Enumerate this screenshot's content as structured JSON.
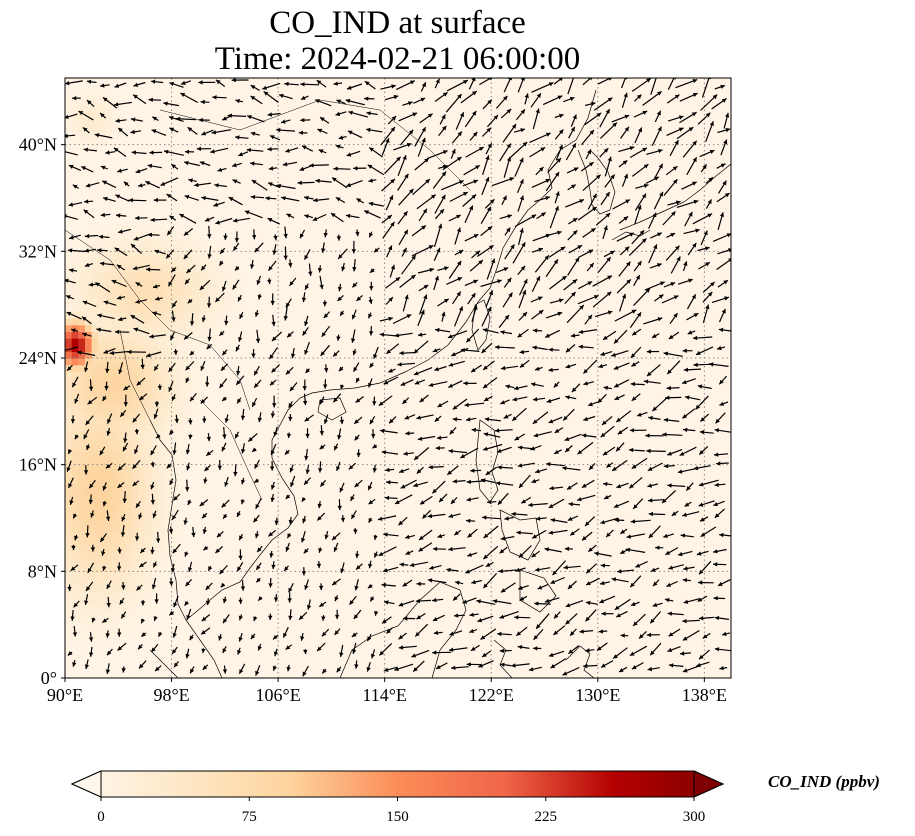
{
  "title_line1": "CO_IND at surface",
  "title_line2": "Time: 2024-02-21 06:00:00",
  "colorbar_label": "CO_IND (ppbv)",
  "colors": {
    "ocean_background": "#fff4e6",
    "wind_arrow": "#000000",
    "coastline": "#000000",
    "gridline": "#888888"
  },
  "chart_data": {
    "type": "map",
    "variable": "CO_IND",
    "level": "surface",
    "units": "ppbv",
    "time": "2024-02-21 06:00:00",
    "lon_range": [
      90,
      140
    ],
    "lat_range": [
      0,
      45
    ],
    "lon_ticks": [
      {
        "value": 90,
        "label": "90°E"
      },
      {
        "value": 98,
        "label": "98°E"
      },
      {
        "value": 106,
        "label": "106°E"
      },
      {
        "value": 114,
        "label": "114°E"
      },
      {
        "value": 122,
        "label": "122°E"
      },
      {
        "value": 130,
        "label": "130°E"
      },
      {
        "value": 138,
        "label": "138°E"
      }
    ],
    "lat_ticks": [
      {
        "value": 0,
        "label": "0°"
      },
      {
        "value": 8,
        "label": "8°N"
      },
      {
        "value": 16,
        "label": "16°N"
      },
      {
        "value": 24,
        "label": "24°N"
      },
      {
        "value": 32,
        "label": "32°N"
      },
      {
        "value": 40,
        "label": "40°N"
      }
    ],
    "gridlines": "dotted",
    "colormap": "OrRd",
    "colorbar": {
      "range": [
        0,
        300
      ],
      "extend": "both",
      "orientation": "horizontal",
      "ticks": [
        {
          "value": 0,
          "label": "0"
        },
        {
          "value": 75,
          "label": "75"
        },
        {
          "value": 150,
          "label": "150"
        },
        {
          "value": 225,
          "label": "225"
        },
        {
          "value": 300,
          "label": "300"
        }
      ],
      "stops": [
        {
          "value": 0,
          "color": "#fff7ec"
        },
        {
          "value": 50,
          "color": "#fee8c8"
        },
        {
          "value": 100,
          "color": "#fdd49e"
        },
        {
          "value": 150,
          "color": "#fc8d59"
        },
        {
          "value": 200,
          "color": "#ef6548"
        },
        {
          "value": 250,
          "color": "#b30000"
        },
        {
          "value": 300,
          "color": "#7f0000"
        }
      ]
    },
    "concentration_blobs": [
      {
        "lon": 92.5,
        "lat": 14,
        "rlon": 5.5,
        "rlat": 10,
        "value": 100
      },
      {
        "lon": 93.5,
        "lat": 22,
        "rlon": 6,
        "rlat": 6,
        "value": 95
      },
      {
        "lon": 96,
        "lat": 29,
        "rlon": 7,
        "rlat": 5,
        "value": 70
      },
      {
        "lon": 90.8,
        "lat": 25,
        "rlon": 1.8,
        "rlat": 2.2,
        "value": 260
      },
      {
        "lon": 92,
        "lat": 42,
        "rlon": 2.5,
        "rlat": 2.5,
        "value": 40
      }
    ],
    "wind_field": {
      "description": "surface wind vectors",
      "regions": [
        {
          "name": "north_china",
          "lon": [
            95,
            114
          ],
          "lat": [
            34,
            45
          ],
          "u": -1.0,
          "v": 0.1,
          "speed": 1.0
        },
        {
          "name": "china_plain",
          "lon": [
            98,
            118
          ],
          "lat": [
            24,
            34
          ],
          "u": -0.3,
          "v": -0.8,
          "speed": 0.7
        },
        {
          "name": "west_boundary",
          "lon": [
            90,
            98
          ],
          "lat": [
            25,
            45
          ],
          "u": -1.0,
          "v": 0.2,
          "speed": 0.9
        },
        {
          "name": "southeast_asia",
          "lon": [
            90,
            114
          ],
          "lat": [
            0,
            24
          ],
          "u": -0.4,
          "v": -0.9,
          "speed": 0.6
        },
        {
          "name": "east_china_sea_japan",
          "lon": [
            114,
            140
          ],
          "lat": [
            26,
            45
          ],
          "u": 0.7,
          "v": 0.7,
          "speed": 1.2
        },
        {
          "name": "south_china_sea_trades",
          "lon": [
            114,
            140
          ],
          "lat": [
            0,
            26
          ],
          "u": -0.9,
          "v": -0.3,
          "speed": 1.0
        }
      ]
    }
  }
}
